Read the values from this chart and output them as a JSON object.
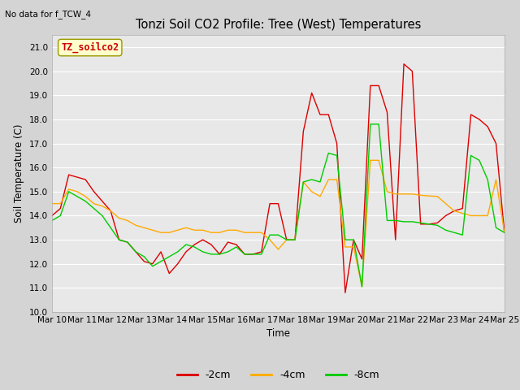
{
  "title": "Tonzi Soil CO2 Profile: Tree (West) Temperatures",
  "no_data_label": "No data for f_TCW_4",
  "ylabel": "Soil Temperature (C)",
  "xlabel": "Time",
  "annotation": "TZ_soilco2",
  "ylim": [
    10.0,
    21.5
  ],
  "yticks": [
    10.0,
    11.0,
    12.0,
    13.0,
    14.0,
    15.0,
    16.0,
    17.0,
    18.0,
    19.0,
    20.0,
    21.0
  ],
  "x_labels": [
    "Mar 10",
    "Mar 11",
    "Mar 12",
    "Mar 13",
    "Mar 14",
    "Mar 15",
    "Mar 16",
    "Mar 17",
    "Mar 18",
    "Mar 19",
    "Mar 20",
    "Mar 21",
    "Mar 22",
    "Mar 23",
    "Mar 24",
    "Mar 25"
  ],
  "line_colors": {
    "2cm": "#dd0000",
    "4cm": "#ffaa00",
    "8cm": "#00cc00"
  },
  "legend_labels": [
    "-2cm",
    "-4cm",
    "-8cm"
  ],
  "bg_color": "#d4d4d4",
  "plot_bg_color": "#e8e8e8",
  "series_2cm": [
    14.0,
    14.3,
    15.7,
    15.6,
    15.5,
    15.0,
    14.6,
    14.2,
    13.0,
    12.9,
    12.5,
    12.1,
    12.0,
    12.5,
    11.6,
    12.0,
    12.5,
    12.8,
    13.0,
    12.8,
    12.4,
    12.9,
    12.8,
    12.4,
    12.4,
    12.5,
    14.5,
    14.5,
    13.0,
    13.0,
    17.5,
    19.1,
    18.2,
    18.2,
    17.0,
    10.8,
    13.0,
    12.2,
    19.4,
    19.4,
    18.3,
    13.0,
    20.3,
    20.0,
    13.65,
    13.65,
    13.7,
    14.0,
    14.2,
    14.3,
    18.2,
    18.0,
    17.7,
    17.0,
    13.3
  ],
  "series_4cm": [
    14.5,
    14.5,
    15.1,
    15.0,
    14.8,
    14.5,
    14.4,
    14.2,
    13.9,
    13.8,
    13.6,
    13.5,
    13.4,
    13.3,
    13.3,
    13.4,
    13.5,
    13.4,
    13.4,
    13.3,
    13.3,
    13.4,
    13.4,
    13.3,
    13.3,
    13.3,
    13.0,
    12.6,
    13.0,
    13.0,
    15.4,
    15.0,
    14.8,
    15.5,
    15.5,
    12.7,
    12.7,
    11.05,
    16.3,
    16.3,
    15.0,
    14.9,
    14.9,
    14.9,
    14.85,
    14.82,
    14.8,
    14.5,
    14.2,
    14.1,
    14.0,
    14.0,
    14.0,
    15.5,
    13.3
  ],
  "series_8cm": [
    13.8,
    14.0,
    15.0,
    14.8,
    14.6,
    14.3,
    14.0,
    13.5,
    13.0,
    12.9,
    12.5,
    12.3,
    11.9,
    12.1,
    12.3,
    12.5,
    12.8,
    12.7,
    12.5,
    12.4,
    12.4,
    12.5,
    12.7,
    12.4,
    12.4,
    12.4,
    13.2,
    13.2,
    13.0,
    13.0,
    15.4,
    15.5,
    15.4,
    16.6,
    16.5,
    13.0,
    13.0,
    11.05,
    17.8,
    17.8,
    13.8,
    13.8,
    13.75,
    13.75,
    13.7,
    13.65,
    13.6,
    13.4,
    13.3,
    13.2,
    16.5,
    16.3,
    15.5,
    13.5,
    13.3
  ]
}
